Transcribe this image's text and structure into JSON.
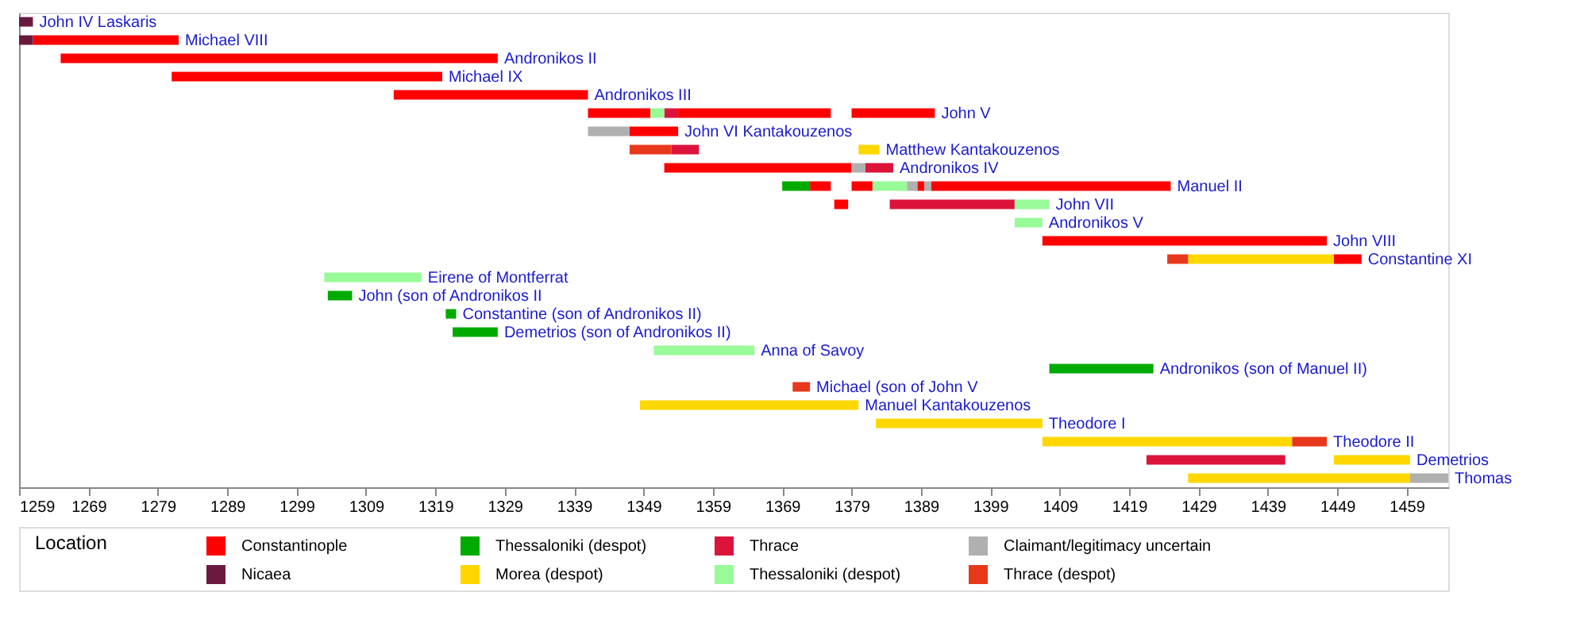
{
  "chart_data": {
    "type": "bar",
    "orientation": "horizontal",
    "categories": [
      "John IV Laskaris",
      "Michael VIII",
      "Andronikos II",
      "Michael IX",
      "Andronikos III",
      "John V",
      "John VI Kantakouzenos",
      "Matthew Kantakouzenos",
      "Andronikos IV",
      "Manuel II",
      "John VII",
      "Andronikos V",
      "John VIII",
      "Constantine XI",
      "Eirene of Montferrat",
      "John (son of Andronikos II",
      "Constantine (son of Andronikos II)",
      "Demetrios (son of Andronikos II)",
      "Anna of Savoy",
      "Andronikos (son of Manuel II)",
      "Michael (son of John V",
      "Manuel Kantakouzenos",
      "Theodore I",
      "Theodore II",
      "Demetrios",
      "Thomas"
    ],
    "series": [
      {
        "name": "Constantinople",
        "color": "#ff0000",
        "values": [
          null,
          21,
          63,
          39,
          28,
          9,
          7,
          null,
          27,
          3,
          2,
          null,
          41,
          4,
          null,
          null,
          null,
          null,
          null,
          null,
          null,
          null,
          null,
          null,
          null,
          null
        ],
        "base": [
          null,
          1261,
          1265,
          1281,
          1313,
          1341,
          1347,
          null,
          1352,
          1373,
          1376.5,
          null,
          1406.5,
          1448.5,
          null,
          null,
          null,
          null,
          null,
          null,
          null,
          null,
          null,
          null,
          null,
          null
        ]
      },
      {
        "name": "Nicaea",
        "color": "#6b1a3f",
        "values": [
          2,
          2,
          null,
          null,
          null,
          null,
          null,
          null,
          null,
          null,
          null,
          null,
          null,
          null,
          null,
          null,
          null,
          null,
          null,
          null,
          null,
          null,
          null,
          null,
          null,
          null
        ],
        "base": [
          1259,
          1259,
          null,
          null,
          null,
          null,
          null,
          null,
          null,
          null,
          null,
          null,
          null,
          null,
          null,
          null,
          null,
          null,
          null,
          null,
          null,
          null,
          null,
          null,
          null,
          null
        ]
      },
      {
        "name": "Thessaloniki (despot)",
        "color": "#00aa00",
        "values": [
          null,
          null,
          null,
          null,
          null,
          null,
          null,
          null,
          null,
          4,
          null,
          null,
          null,
          null,
          null,
          3.5,
          1.5,
          6.5,
          null,
          15,
          null,
          null,
          null,
          null,
          null,
          null
        ],
        "base": [
          null,
          null,
          null,
          null,
          null,
          null,
          null,
          null,
          null,
          1369,
          null,
          null,
          null,
          null,
          null,
          1303.5,
          1320.5,
          1321.5,
          null,
          1407.5,
          null,
          null,
          null,
          null,
          null,
          null
        ]
      },
      {
        "name": "Morea (despot)",
        "color": "#ffd700",
        "values": [
          null,
          null,
          null,
          null,
          null,
          null,
          null,
          3,
          null,
          null,
          null,
          null,
          null,
          21,
          null,
          null,
          null,
          null,
          null,
          null,
          null,
          31.5,
          24,
          36,
          11,
          32
        ],
        "base": [
          null,
          null,
          null,
          null,
          null,
          null,
          null,
          1380,
          null,
          null,
          null,
          null,
          null,
          1427.5,
          null,
          null,
          null,
          null,
          null,
          null,
          null,
          1348.5,
          1382.5,
          1406.5,
          1448.5,
          1427.5
        ]
      },
      {
        "name": "Thrace",
        "color": "#dc143c",
        "values": [
          null,
          null,
          null,
          null,
          null,
          2,
          null,
          4,
          4,
          null,
          18,
          null,
          null,
          null,
          null,
          null,
          null,
          null,
          null,
          null,
          null,
          null,
          null,
          null,
          20,
          null
        ],
        "base": [
          null,
          null,
          null,
          null,
          null,
          1352,
          null,
          1353,
          1381,
          null,
          1384.5,
          null,
          null,
          null,
          null,
          null,
          null,
          null,
          null,
          null,
          null,
          null,
          null,
          null,
          1421.5,
          null
        ]
      },
      {
        "name": "Thessaloniki (despot)",
        "color": "#98fb98",
        "values": [
          null,
          null,
          null,
          null,
          null,
          2,
          null,
          null,
          null,
          5,
          5,
          4,
          null,
          null,
          14,
          null,
          null,
          null,
          14.5,
          null,
          null,
          null,
          null,
          null,
          null,
          null
        ],
        "base": [
          null,
          null,
          null,
          null,
          null,
          1350,
          null,
          null,
          null,
          1382,
          1402.5,
          1402.5,
          null,
          null,
          1303,
          null,
          null,
          null,
          1350.5,
          null,
          null,
          null,
          null,
          null,
          null,
          null
        ]
      },
      {
        "name": "Claimant/legitimacy uncertain",
        "color": "#b0b0b0",
        "values": [
          null,
          null,
          null,
          null,
          null,
          null,
          6,
          null,
          2,
          1.5,
          null,
          null,
          null,
          null,
          null,
          null,
          null,
          null,
          null,
          null,
          null,
          null,
          null,
          null,
          null,
          5.5
        ],
        "base": [
          null,
          null,
          null,
          null,
          null,
          null,
          1341,
          null,
          1379,
          1387,
          null,
          null,
          null,
          null,
          null,
          null,
          null,
          null,
          null,
          null,
          null,
          null,
          null,
          null,
          null,
          1459.5
        ]
      },
      {
        "name": "Thrace (despot)",
        "color": "#e8381c",
        "values": [
          null,
          null,
          null,
          null,
          null,
          null,
          null,
          6,
          null,
          null,
          null,
          null,
          null,
          3,
          null,
          null,
          null,
          null,
          null,
          null,
          2.5,
          null,
          null,
          5,
          null,
          null
        ],
        "base": [
          null,
          null,
          null,
          null,
          null,
          null,
          null,
          1347,
          null,
          null,
          null,
          null,
          null,
          1424.5,
          null,
          null,
          null,
          null,
          null,
          null,
          1370.5,
          null,
          null,
          1442.5,
          null,
          null
        ]
      },
      {
        "color": "#ff0000",
        "values": [
          null,
          null,
          null,
          null,
          null,
          22,
          null,
          null,
          null,
          3,
          null,
          null,
          null,
          null,
          null,
          null,
          null,
          null,
          null,
          null,
          null,
          null,
          null,
          null,
          null,
          null
        ],
        "base": [
          null,
          null,
          null,
          null,
          null,
          1354,
          null,
          null,
          null,
          1379,
          null,
          null,
          null,
          null,
          null,
          null,
          null,
          null,
          null,
          null,
          null,
          null,
          null,
          null,
          null,
          null
        ]
      },
      {
        "color": "#ff0000",
        "values": [
          null,
          null,
          null,
          null,
          null,
          12,
          null,
          null,
          null,
          1,
          null,
          null,
          null,
          null,
          null,
          null,
          null,
          null,
          null,
          null,
          null,
          null,
          null,
          null,
          null,
          null
        ],
        "base": [
          null,
          null,
          null,
          null,
          null,
          1379,
          null,
          null,
          null,
          1388.5,
          null,
          null,
          null,
          null,
          null,
          null,
          null,
          null,
          null,
          null,
          null,
          null,
          null,
          null,
          null,
          null
        ]
      },
      {
        "color": "#ff0000",
        "values": [
          null,
          null,
          null,
          null,
          null,
          null,
          null,
          null,
          null,
          34.5,
          null,
          null,
          null,
          null,
          null,
          null,
          null,
          null,
          null,
          null,
          null,
          null,
          null,
          null,
          null,
          null
        ],
        "base": [
          null,
          null,
          null,
          null,
          null,
          null,
          null,
          null,
          null,
          1390.5,
          null,
          null,
          null,
          null,
          null,
          null,
          null,
          null,
          null,
          null,
          null,
          null,
          null,
          null,
          null,
          null
        ]
      },
      {
        "color": "#b0b0b0",
        "values": [
          null,
          null,
          null,
          null,
          null,
          null,
          null,
          null,
          null,
          1,
          null,
          null,
          null,
          null,
          null,
          null,
          null,
          null,
          null,
          null,
          null,
          null,
          null,
          null,
          null,
          null
        ],
        "base": [
          null,
          null,
          null,
          null,
          null,
          null,
          null,
          null,
          null,
          1389.5,
          null,
          null,
          null,
          null,
          null,
          null,
          null,
          null,
          null,
          null,
          null,
          null,
          null,
          null,
          null,
          null
        ]
      }
    ],
    "xlim": [
      1259,
      1465
    ],
    "xticks": [
      1259,
      1269,
      1279,
      1289,
      1299,
      1309,
      1319,
      1329,
      1339,
      1349,
      1359,
      1369,
      1379,
      1389,
      1399,
      1409,
      1419,
      1429,
      1439,
      1449,
      1459
    ],
    "legend_title": "Location",
    "legend": "bottom",
    "grid": false
  }
}
